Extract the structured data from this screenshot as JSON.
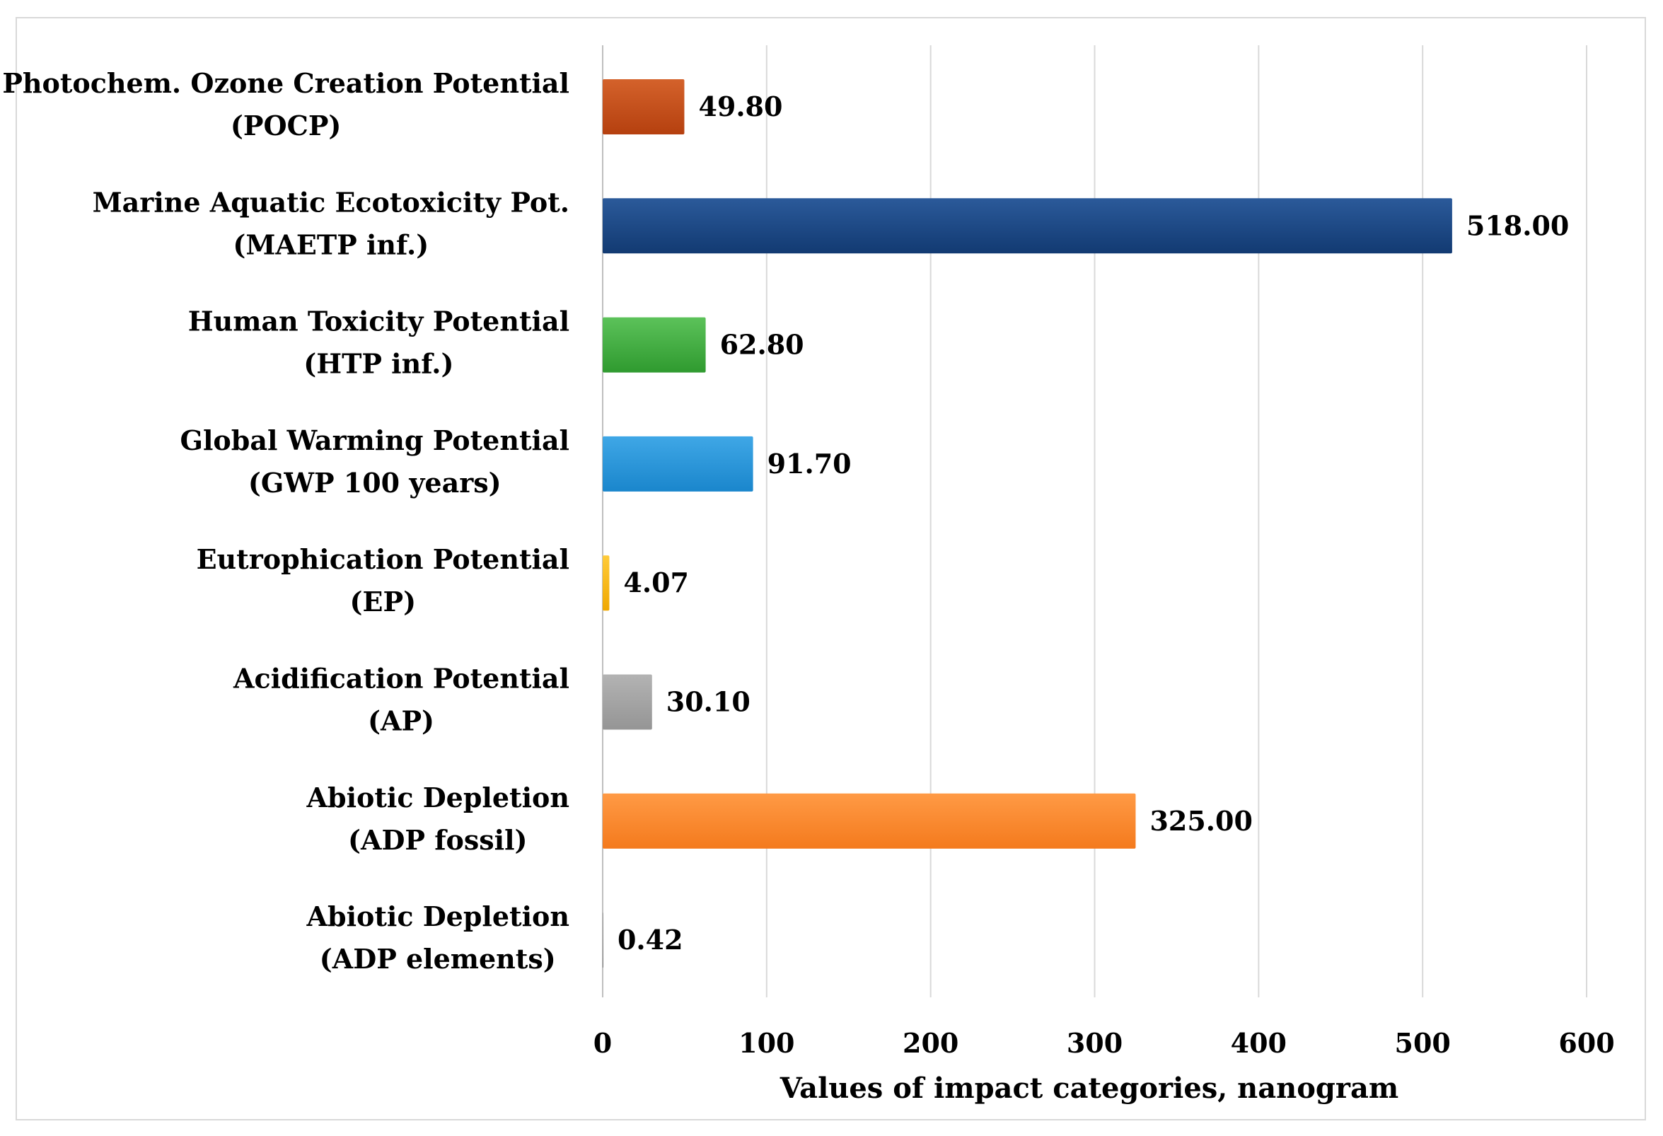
{
  "chart_data": {
    "type": "bar",
    "orientation": "horizontal",
    "title": "",
    "xlabel": "Values of impact categories, nanogram",
    "ylabel": "",
    "xlim": [
      0,
      600
    ],
    "x_ticks": [
      "0",
      "100",
      "200",
      "300",
      "400",
      "500",
      "600"
    ],
    "x_tick_values": [
      0,
      100,
      200,
      300,
      400,
      500,
      600
    ],
    "grid": true,
    "legend": "none",
    "categories": [
      {
        "line1": "Photochem. Ozone Creation Potential",
        "line2": "(POCP)"
      },
      {
        "line1": "Marine Aquatic Ecotoxicity Pot.",
        "line2": "(MAETP inf.)"
      },
      {
        "line1": "Human Toxicity Potential",
        "line2": "(HTP inf.)"
      },
      {
        "line1": "Global Warming Potential",
        "line2": "(GWP 100 years)"
      },
      {
        "line1": "Eutrophication Potential",
        "line2": "(EP)"
      },
      {
        "line1": "Acidification Potential",
        "line2": "(AP)"
      },
      {
        "line1": "Abiotic Depletion",
        "line2": "(ADP fossil)"
      },
      {
        "line1": "Abiotic Depletion",
        "line2": "(ADP elements)"
      }
    ],
    "values": [
      49.8,
      518.0,
      62.8,
      91.7,
      4.07,
      30.1,
      325.0,
      0.42
    ],
    "value_labels": [
      "49.80",
      "518.00",
      "62.80",
      "91.70",
      "4.07",
      "30.10",
      "325.00",
      "0.42"
    ],
    "colors": [
      [
        "#d4622b",
        "#b5400f"
      ],
      [
        "#2b5a9a",
        "#123a72"
      ],
      [
        "#5cc25a",
        "#2f9a2f"
      ],
      [
        "#3fa7e6",
        "#1a86cc"
      ],
      [
        "#ffcb3a",
        "#f0a800"
      ],
      [
        "#b3b3b3",
        "#959595"
      ],
      [
        "#ff9a45",
        "#f47a1d"
      ],
      [
        "#9a9a9a",
        "#777777"
      ]
    ],
    "gridline_color": "#d9d9d9"
  }
}
